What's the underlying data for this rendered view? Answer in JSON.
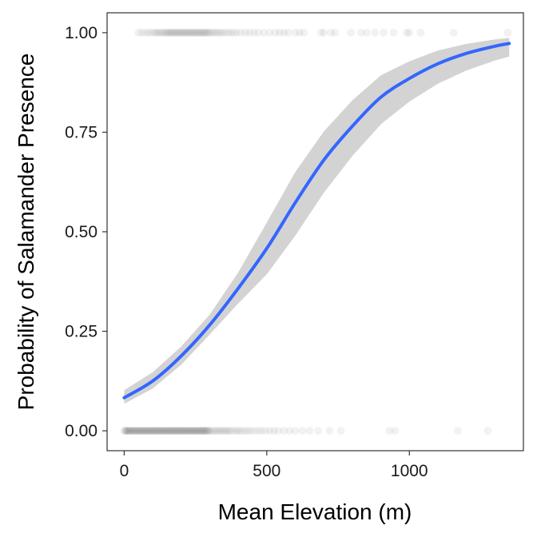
{
  "chart_data": {
    "type": "scatter",
    "title": "",
    "xlabel": "Mean Elevation (m)",
    "ylabel": "Probability of Salamander Presence",
    "xlim": [
      -60,
      1400
    ],
    "ylim": [
      -0.05,
      1.05
    ],
    "x_ticks": [
      0,
      500,
      1000
    ],
    "x_tick_labels": [
      "0",
      "500",
      "1000"
    ],
    "y_ticks": [
      0,
      0.25,
      0.5,
      0.75,
      1.0
    ],
    "y_tick_labels": [
      "0.00",
      "0.25",
      "0.50",
      "0.75",
      "1.00"
    ],
    "grid": false,
    "legend": "none",
    "colors": {
      "points": "#000000",
      "fit_line": "#3366FF",
      "confidence_band": "#d3d3d3",
      "panel_border": "#333333"
    },
    "series": [
      {
        "kind": "points",
        "alpha": 0.05,
        "absent_y": 0,
        "present_y": 1,
        "absent_x": [
          0,
          3,
          6,
          9,
          12,
          15,
          18,
          22,
          25,
          28,
          32,
          35,
          38,
          42,
          45,
          48,
          52,
          55,
          58,
          62,
          65,
          68,
          72,
          75,
          78,
          82,
          85,
          88,
          92,
          95,
          98,
          102,
          105,
          108,
          112,
          115,
          118,
          122,
          125,
          128,
          132,
          135,
          138,
          142,
          145,
          148,
          152,
          155,
          158,
          162,
          165,
          168,
          172,
          175,
          178,
          182,
          185,
          188,
          192,
          195,
          198,
          202,
          205,
          208,
          212,
          215,
          218,
          222,
          225,
          228,
          232,
          235,
          238,
          242,
          245,
          248,
          252,
          255,
          258,
          262,
          265,
          268,
          272,
          275,
          278,
          282,
          285,
          288,
          292,
          295,
          298,
          305,
          312,
          318,
          325,
          332,
          338,
          345,
          352,
          358,
          365,
          372,
          380,
          390,
          398,
          405,
          415,
          425,
          435,
          445,
          458,
          470,
          482,
          495,
          510,
          525,
          540,
          560,
          580,
          600,
          625,
          650,
          680,
          720,
          760,
          930,
          950,
          1170,
          1275
        ],
        "present_x": [
          50,
          62,
          75,
          85,
          95,
          105,
          112,
          118,
          125,
          132,
          138,
          145,
          150,
          155,
          160,
          165,
          170,
          175,
          180,
          185,
          190,
          195,
          200,
          205,
          210,
          215,
          220,
          225,
          230,
          235,
          240,
          245,
          250,
          255,
          260,
          265,
          270,
          275,
          280,
          285,
          290,
          295,
          300,
          308,
          315,
          322,
          330,
          338,
          345,
          355,
          365,
          375,
          385,
          395,
          410,
          425,
          440,
          455,
          470,
          490,
          510,
          530,
          545,
          560,
          575,
          600,
          615,
          630,
          690,
          700,
          725,
          740,
          795,
          830,
          850,
          880,
          910,
          945,
          990,
          1000,
          1040,
          1155,
          1345
        ]
      },
      {
        "kind": "logistic-fit",
        "x": [
          0,
          100,
          200,
          300,
          400,
          500,
          600,
          700,
          800,
          900,
          1000,
          1100,
          1200,
          1300,
          1350
        ],
        "fit": [
          0.083,
          0.125,
          0.188,
          0.266,
          0.358,
          0.458,
          0.573,
          0.68,
          0.765,
          0.838,
          0.885,
          0.922,
          0.948,
          0.966,
          0.973
        ],
        "lower": [
          0.068,
          0.106,
          0.166,
          0.242,
          0.32,
          0.393,
          0.49,
          0.598,
          0.69,
          0.77,
          0.827,
          0.872,
          0.905,
          0.93,
          0.94
        ],
        "upper": [
          0.102,
          0.147,
          0.212,
          0.292,
          0.398,
          0.523,
          0.65,
          0.752,
          0.83,
          0.893,
          0.928,
          0.955,
          0.972,
          0.983,
          0.987
        ]
      }
    ]
  }
}
